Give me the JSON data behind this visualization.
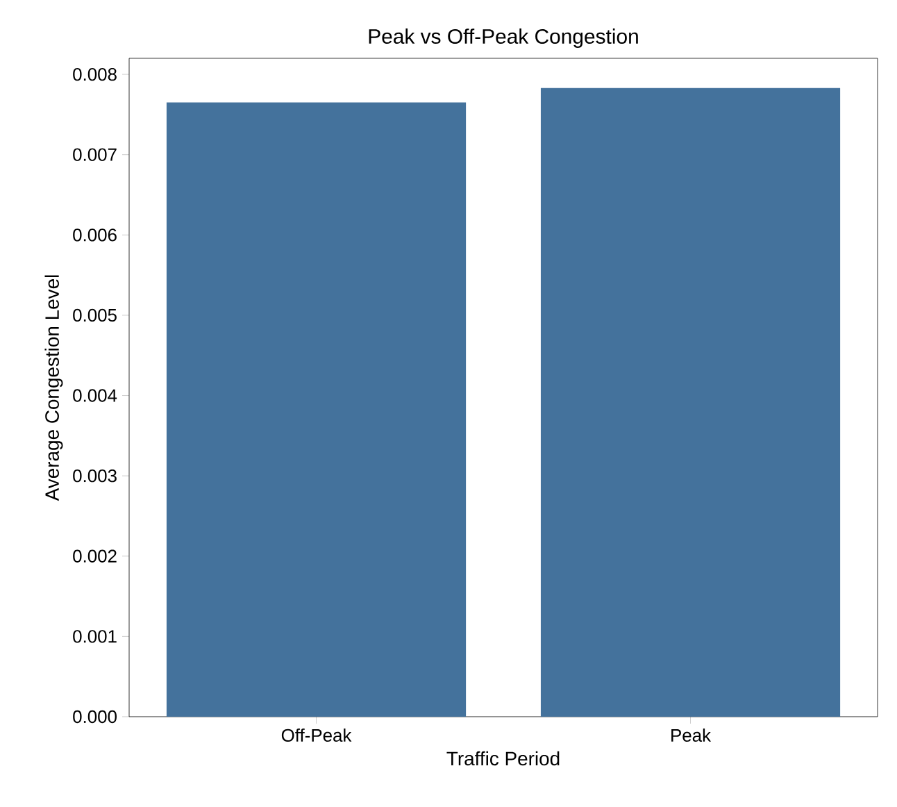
{
  "chart_data": {
    "type": "bar",
    "title": "Peak vs Off-Peak Congestion",
    "xlabel": "Traffic Period",
    "ylabel": "Average Congestion Level",
    "categories": [
      "Off-Peak",
      "Peak"
    ],
    "values": [
      0.00765,
      0.00783
    ],
    "color": "#44729c",
    "ylim": [
      0,
      0.0082
    ],
    "yticks": [
      {
        "value": 0,
        "label": "0.000"
      },
      0.001,
      0.002,
      0.003,
      0.004,
      0.005,
      0.006,
      0.007,
      0.008
    ]
  }
}
